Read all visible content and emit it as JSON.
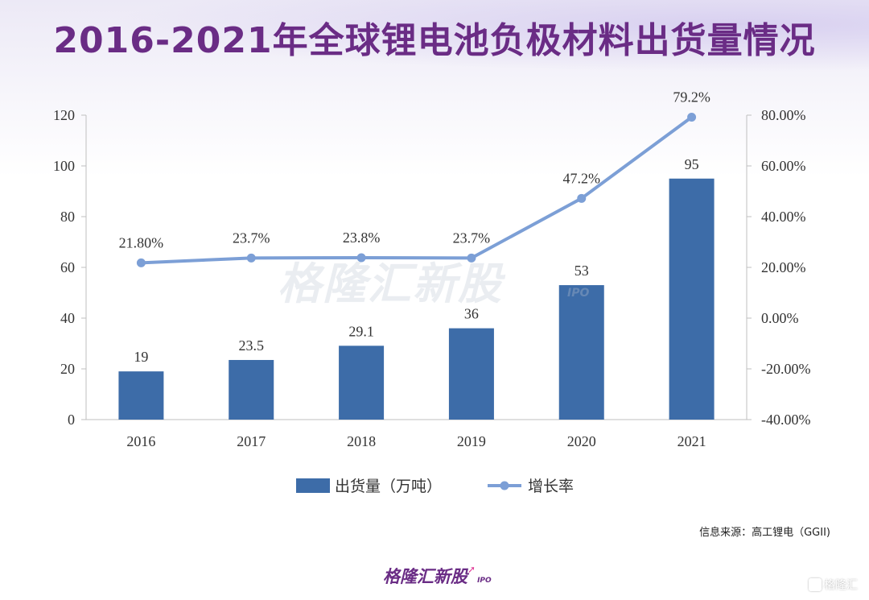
{
  "title": "2016-2021年全球锂电池负极材料出货量情况",
  "watermark": "格隆汇新股",
  "watermark_ipo": "IPO",
  "source": "信息来源：高工锂电（GGII)",
  "footer_logo": "格隆汇新股",
  "footer_ipo": "IPO",
  "corner_mark": "格隆汇",
  "colors": {
    "bar": "#3d6ca8",
    "line": "#7c9fd6",
    "title": "#6a2c85"
  },
  "chart_data": {
    "type": "bar",
    "categories": [
      "2016",
      "2017",
      "2018",
      "2019",
      "2020",
      "2021"
    ],
    "series": [
      {
        "name": "出货量（万吨）",
        "type": "bar",
        "axis": "left",
        "values": [
          19,
          23.5,
          29.1,
          36,
          53,
          95
        ],
        "labels": [
          "19",
          "23.5",
          "29.1",
          "36",
          "53",
          "95"
        ]
      },
      {
        "name": "增长率",
        "type": "line",
        "axis": "right",
        "values": [
          21.8,
          23.7,
          23.8,
          23.7,
          47.2,
          79.2
        ],
        "labels": [
          "21.80%",
          "23.7%",
          "23.8%",
          "23.7%",
          "47.2%",
          "79.2%"
        ]
      }
    ],
    "y_left": {
      "min": 0,
      "max": 120,
      "ticks": [
        "0",
        "20",
        "40",
        "60",
        "80",
        "100",
        "120"
      ]
    },
    "y_right": {
      "min": -40,
      "max": 80,
      "ticks": [
        "-40.00%",
        "-20.00%",
        "0.00%",
        "20.00%",
        "40.00%",
        "60.00%",
        "80.00%"
      ]
    },
    "grid": false,
    "legend_position": "bottom"
  }
}
